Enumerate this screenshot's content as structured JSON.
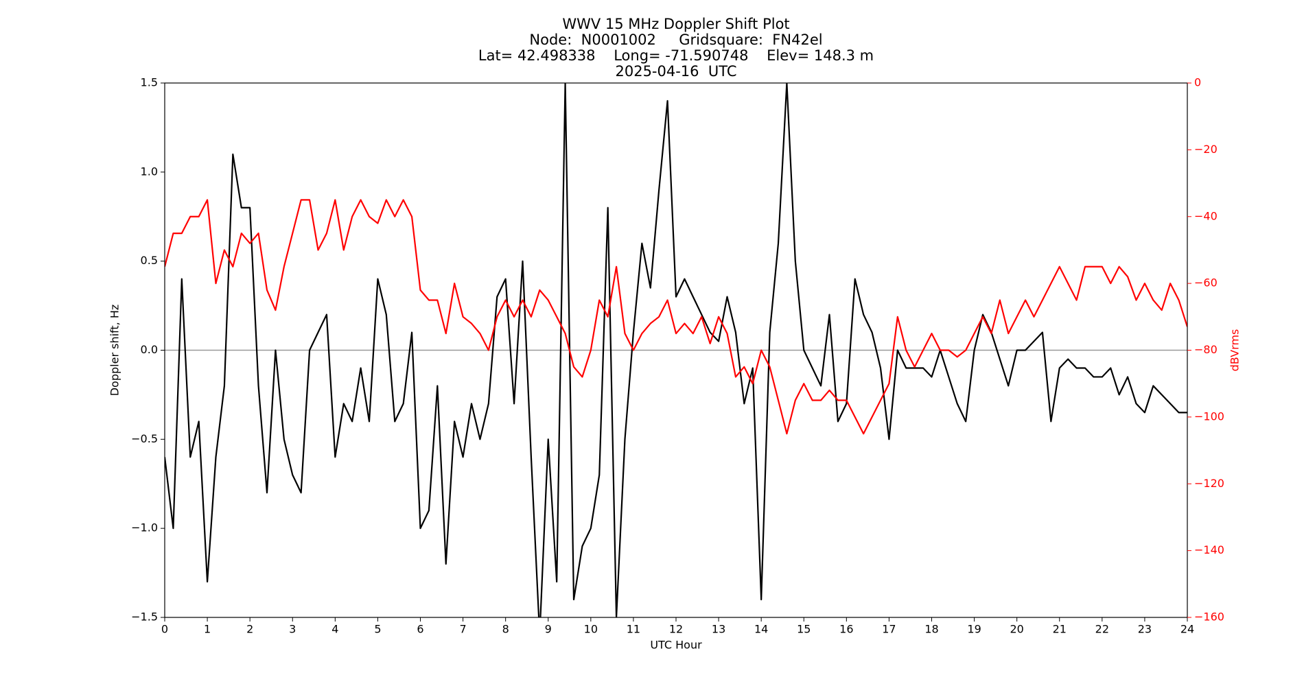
{
  "chart_data": {
    "type": "line",
    "title": [
      "WWV 15 MHz Doppler Shift Plot",
      "Node:  N0001002     Gridsquare:  FN42el",
      "Lat= 42.498338    Long= -71.590748    Elev= 148.3 m",
      "2025-04-16  UTC"
    ],
    "x_label": "UTC Hour",
    "y_label": "Doppler shift, Hz",
    "y2_label": "dBVrms",
    "x": [
      0,
      0.2,
      0.4,
      0.6,
      0.8,
      1,
      1.2,
      1.4,
      1.6,
      1.8,
      2,
      2.2,
      2.4,
      2.6,
      2.8,
      3,
      3.2,
      3.4,
      3.6,
      3.8,
      4,
      4.2,
      4.4,
      4.6,
      4.8,
      5,
      5.2,
      5.4,
      5.6,
      5.8,
      6,
      6.2,
      6.4,
      6.6,
      6.8,
      7,
      7.2,
      7.4,
      7.6,
      7.8,
      8,
      8.2,
      8.4,
      8.6,
      8.8,
      9,
      9.2,
      9.4,
      9.6,
      9.8,
      10,
      10.2,
      10.4,
      10.6,
      10.8,
      11,
      11.2,
      11.4,
      11.6,
      11.8,
      12,
      12.2,
      12.4,
      12.6,
      12.8,
      13,
      13.2,
      13.4,
      13.6,
      13.8,
      14,
      14.2,
      14.4,
      14.6,
      14.8,
      15,
      15.2,
      15.4,
      15.6,
      15.8,
      16,
      16.2,
      16.4,
      16.6,
      16.8,
      17,
      17.2,
      17.4,
      17.6,
      17.8,
      18,
      18.2,
      18.4,
      18.6,
      18.8,
      19,
      19.2,
      19.4,
      19.6,
      19.8,
      20,
      20.2,
      20.4,
      20.6,
      20.8,
      21,
      21.2,
      21.4,
      21.6,
      21.8,
      22,
      22.2,
      22.4,
      22.6,
      22.8,
      23,
      23.2,
      23.4,
      23.6,
      23.8,
      24
    ],
    "series": [
      {
        "name": "Doppler shift",
        "color": "#000000",
        "axis": "y",
        "values": [
          -0.6,
          -1.0,
          0.4,
          -0.6,
          -0.4,
          -1.3,
          -0.6,
          -0.2,
          1.1,
          0.8,
          0.8,
          -0.2,
          -0.8,
          0.0,
          -0.5,
          -0.7,
          -0.8,
          0.0,
          0.1,
          0.2,
          -0.6,
          -0.3,
          -0.4,
          -0.1,
          -0.4,
          0.4,
          0.2,
          -0.4,
          -0.3,
          0.1,
          -1.0,
          -0.9,
          -0.2,
          -1.2,
          -0.4,
          -0.6,
          -0.3,
          -0.5,
          -0.3,
          0.3,
          0.4,
          -0.3,
          0.5,
          -0.6,
          -1.6,
          -0.5,
          -1.3,
          1.5,
          -1.4,
          -1.1,
          -1.0,
          -0.7,
          0.8,
          -1.5,
          -0.5,
          0.1,
          0.6,
          0.35,
          0.9,
          1.4,
          0.3,
          0.4,
          0.3,
          0.2,
          0.1,
          0.05,
          0.3,
          0.1,
          -0.3,
          -0.1,
          -1.4,
          0.1,
          0.6,
          1.5,
          0.5,
          0.0,
          -0.1,
          -0.2,
          0.2,
          -0.4,
          -0.3,
          0.4,
          0.2,
          0.1,
          -0.1,
          -0.5,
          0.0,
          -0.1,
          -0.1,
          -0.1,
          -0.15,
          0.0,
          -0.15,
          -0.3,
          -0.4,
          0.0,
          0.2,
          0.1,
          -0.05,
          -0.2,
          0.0,
          0.0,
          0.05,
          0.1,
          -0.4,
          -0.1,
          -0.05,
          -0.1,
          -0.1,
          -0.15,
          -0.15,
          -0.1,
          -0.25,
          -0.15,
          -0.3,
          -0.35,
          -0.2,
          -0.25,
          -0.3,
          -0.35,
          -0.35
        ]
      },
      {
        "name": "dBVrms",
        "color": "#ff0000",
        "axis": "y2",
        "values": [
          -55,
          -45,
          -45,
          -40,
          -40,
          -35,
          -60,
          -50,
          -55,
          -45,
          -48,
          -45,
          -62,
          -68,
          -55,
          -45,
          -35,
          -35,
          -50,
          -45,
          -35,
          -50,
          -40,
          -35,
          -40,
          -42,
          -35,
          -40,
          -35,
          -40,
          -62,
          -65,
          -65,
          -75,
          -60,
          -70,
          -72,
          -75,
          -80,
          -70,
          -65,
          -70,
          -65,
          -70,
          -62,
          -65,
          -70,
          -75,
          -85,
          -88,
          -80,
          -65,
          -70,
          -55,
          -75,
          -80,
          -75,
          -72,
          -70,
          -65,
          -75,
          -72,
          -75,
          -70,
          -78,
          -70,
          -75,
          -88,
          -85,
          -90,
          -80,
          -85,
          -95,
          -105,
          -95,
          -90,
          -95,
          -95,
          -92,
          -95,
          -95,
          -100,
          -105,
          -100,
          -95,
          -90,
          -70,
          -80,
          -85,
          -80,
          -75,
          -80,
          -80,
          -82,
          -80,
          -75,
          -70,
          -75,
          -65,
          -75,
          -70,
          -65,
          -70,
          -65,
          -60,
          -55,
          -60,
          -65,
          -55,
          -55,
          -55,
          -60,
          -55,
          -58,
          -65,
          -60,
          -65,
          -68,
          -60,
          -65,
          -73
        ]
      }
    ],
    "reference_line": {
      "value": 0,
      "color": "#999999"
    },
    "xlim": [
      0,
      24
    ],
    "xticks": [
      0,
      1,
      2,
      3,
      4,
      5,
      6,
      7,
      8,
      9,
      10,
      11,
      12,
      13,
      14,
      15,
      16,
      17,
      18,
      19,
      20,
      21,
      22,
      23,
      24
    ],
    "ylim": [
      -1.5,
      1.5
    ],
    "yticks": [
      {
        "value": -1.5,
        "label": "−1.5"
      },
      {
        "value": -1.0,
        "label": "−1.0"
      },
      {
        "value": -0.5,
        "label": "−0.5"
      },
      {
        "value": 0,
        "label": "0.0"
      },
      0.5,
      {
        "value": 1.0,
        "label": "1.0"
      },
      1.5
    ],
    "y2lim": [
      -160,
      0
    ],
    "y2ticks": [
      {
        "value": -160,
        "label": "−160"
      },
      {
        "value": -140,
        "label": "−140"
      },
      {
        "value": -120,
        "label": "−120"
      },
      {
        "value": -100,
        "label": "−100"
      },
      {
        "value": -80,
        "label": "−80"
      },
      {
        "value": -60,
        "label": "−60"
      },
      {
        "value": -40,
        "label": "−40"
      },
      {
        "value": -20,
        "label": "−20"
      },
      0
    ],
    "y2_color": "#ff0000",
    "grid": false
  }
}
